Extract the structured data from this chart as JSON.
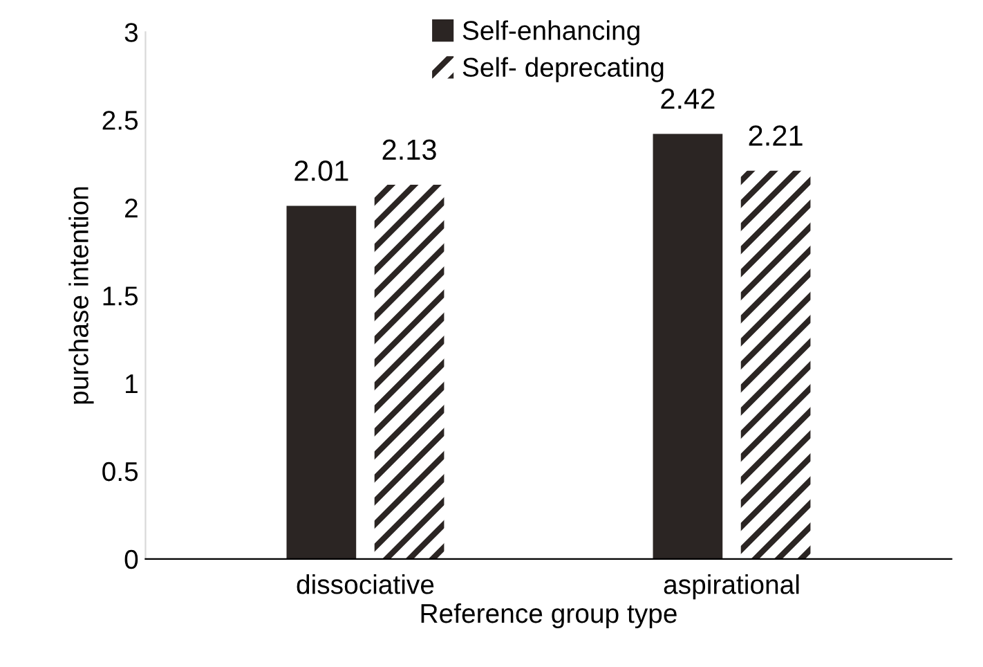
{
  "chart_data": {
    "type": "bar",
    "xlabel": "Reference group type",
    "ylabel": "purchase intention",
    "categories": [
      "dissociative",
      "aspirational"
    ],
    "series": [
      {
        "name": "Self-enhancing",
        "color": "#2b2523",
        "values": [
          2.01,
          2.42
        ]
      },
      {
        "name": "Self- deprecating",
        "color": "#2b2523",
        "values": [
          2.13,
          2.21
        ]
      }
    ],
    "ylim": [
      0,
      3
    ],
    "yticks": [
      0,
      0.5,
      1,
      1.5,
      2,
      2.5,
      3
    ],
    "grid": false,
    "legend": "top",
    "data_labels": true
  }
}
